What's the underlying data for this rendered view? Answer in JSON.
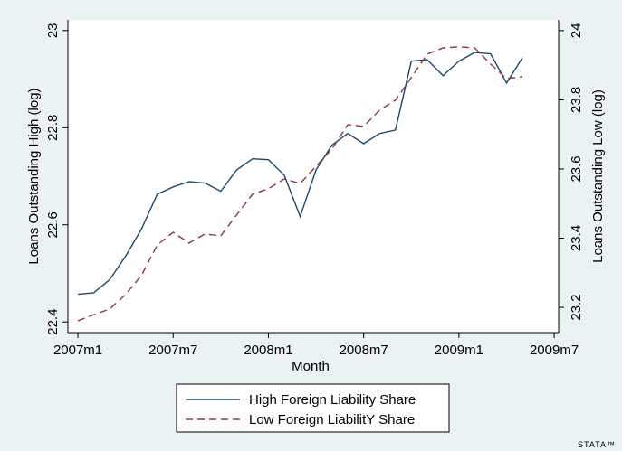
{
  "chart_data": {
    "type": "line",
    "x_label": "Month",
    "y_label": "Loans Outstanding High (log)",
    "y2_label": "Loans Outstanding Low (log)",
    "logo": "STATA™",
    "x": [
      564,
      565,
      566,
      567,
      568,
      569,
      570,
      571,
      572,
      573,
      574,
      575,
      576,
      577,
      578,
      579,
      580,
      581,
      582,
      583,
      584,
      585,
      586,
      587,
      588,
      589,
      590,
      591,
      592
    ],
    "xlim": [
      563.37,
      594.28
    ],
    "xticks": [
      {
        "value": 564,
        "label": "2007m1"
      },
      {
        "value": 570,
        "label": "2007m7"
      },
      {
        "value": 576,
        "label": "2008m1"
      },
      {
        "value": 582,
        "label": "2008m7"
      },
      {
        "value": 588,
        "label": "2009m1"
      },
      {
        "value": 594,
        "label": "2009m7"
      }
    ],
    "ylim": [
      22.378,
      23.022
    ],
    "yticks": [
      22.4,
      22.6,
      22.8,
      23
    ],
    "y2lim": [
      23.127,
      24.031
    ],
    "y2ticks": [
      23.2,
      23.4,
      23.6,
      23.8,
      24
    ],
    "grid": false,
    "series": [
      {
        "name": "High Foreign Liability Share",
        "color": "#1a476f",
        "dash": "solid",
        "values": [
          22.457,
          22.46,
          22.487,
          22.535,
          22.591,
          22.663,
          22.678,
          22.689,
          22.686,
          22.669,
          22.713,
          22.736,
          22.734,
          22.702,
          22.617,
          22.713,
          22.764,
          22.788,
          22.767,
          22.788,
          22.795,
          22.937,
          22.94,
          22.907,
          22.937,
          22.955,
          22.952,
          22.892,
          22.944
        ]
      },
      {
        "name": "Low Foreign LiabilitY Share",
        "color": "#90353b",
        "dash": "dashed",
        "axis": "y2",
        "values": [
          23.161,
          23.179,
          23.195,
          23.237,
          23.292,
          23.38,
          23.417,
          23.386,
          23.412,
          23.407,
          23.467,
          23.527,
          23.543,
          23.571,
          23.558,
          23.608,
          23.658,
          23.728,
          23.723,
          23.77,
          23.799,
          23.864,
          23.932,
          23.95,
          23.953,
          23.95,
          23.903,
          23.861,
          23.867
        ]
      }
    ]
  }
}
